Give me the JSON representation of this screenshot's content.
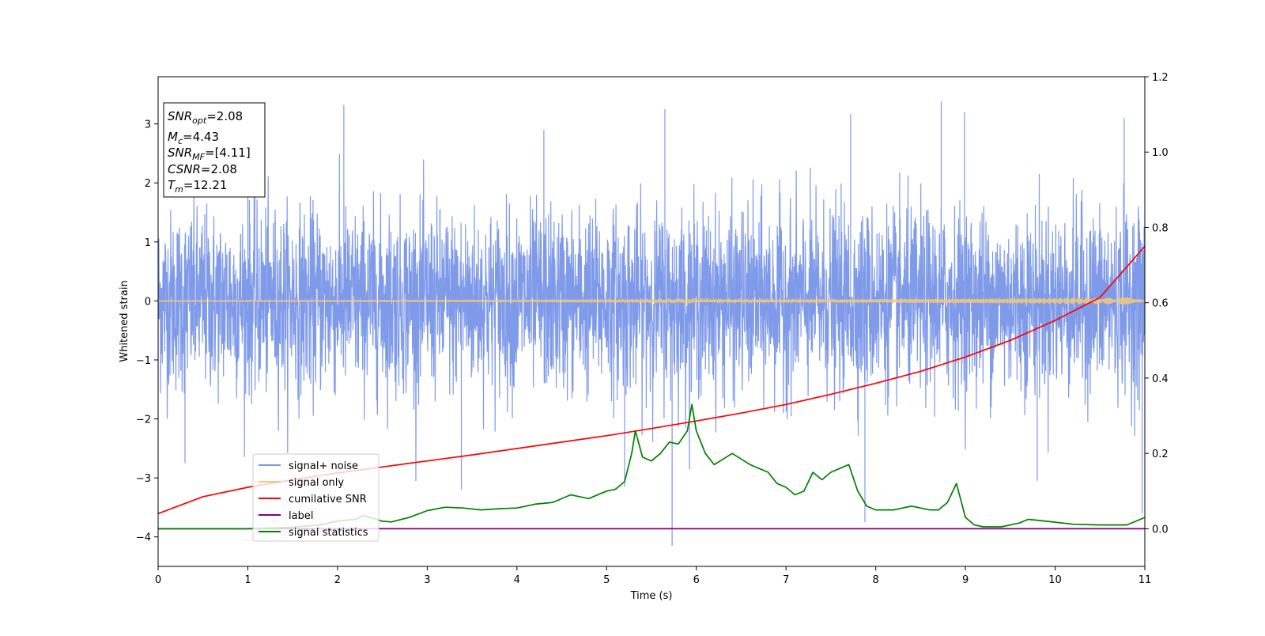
{
  "chart_data": {
    "type": "line",
    "title": "",
    "xlabel": "Time (s)",
    "ylabel": "Whitened strain",
    "y2label": "",
    "xlim": [
      0,
      11
    ],
    "ylim": [
      -4.5,
      3.8
    ],
    "y2lim": [
      -0.1,
      1.2
    ],
    "xticks": [
      "0",
      "1",
      "2",
      "3",
      "4",
      "5",
      "6",
      "7",
      "8",
      "9",
      "10",
      "11"
    ],
    "yticks": [
      "−4",
      "−3",
      "−2",
      "−1",
      "0",
      "1",
      "2",
      "3"
    ],
    "y2ticks": [
      "0.0",
      "0.2",
      "0.4",
      "0.6",
      "0.8",
      "1.0",
      "1.2"
    ],
    "grid": false,
    "legend_position": "lower-left",
    "info_box": {
      "snr_opt": {
        "main": "SNR",
        "sub": "opt",
        "value": "=2.08"
      },
      "mc": {
        "main": "M",
        "sub": "c",
        "value": "=4.43"
      },
      "snr_mf": {
        "main": "SNR",
        "sub": "MF",
        "value": "=[4.11]"
      },
      "csnr": {
        "main": "CSNR",
        "value": "=2.08"
      },
      "tm": {
        "main": "T",
        "sub": "m",
        "value": "=12.21"
      }
    },
    "series": [
      {
        "name": "signal+ noise",
        "axis": "left",
        "color": "#7895e8",
        "style": "noise",
        "center": 0.0,
        "envelope_typical": [
          -1.6,
          1.6
        ],
        "envelope_extremes": [
          -4.15,
          3.38
        ],
        "spikes": [
          {
            "x": 2.07,
            "y": 3.32
          },
          {
            "x": 5.65,
            "y": 3.25
          },
          {
            "x": 7.72,
            "y": 3.17
          },
          {
            "x": 8.73,
            "y": 3.38
          },
          {
            "x": 8.99,
            "y": 3.2
          },
          {
            "x": 10.77,
            "y": 3.1
          },
          {
            "x": 5.73,
            "y": -4.15
          },
          {
            "x": 7.88,
            "y": -3.75
          },
          {
            "x": 3.38,
            "y": -3.2
          },
          {
            "x": 9.8,
            "y": -3.05
          },
          {
            "x": 5.2,
            "y": -3.15
          },
          {
            "x": 0.3,
            "y": -2.75
          },
          {
            "x": 4.3,
            "y": 2.9
          },
          {
            "x": 1.0,
            "y": 2.7
          },
          {
            "x": 10.97,
            "y": -3.6
          }
        ]
      },
      {
        "name": "signal only",
        "axis": "left",
        "color": "#f5c97a",
        "style": "chirp",
        "amplitude_start": 0.008,
        "amplitude_end": 0.06
      },
      {
        "name": "cumilative SNR",
        "axis": "right",
        "color": "#ff0000",
        "x": [
          0,
          0.5,
          1,
          1.5,
          2,
          2.5,
          3,
          3.5,
          4,
          4.5,
          5,
          5.5,
          6,
          6.5,
          7,
          7.5,
          8,
          8.5,
          9,
          9.5,
          10,
          10.5,
          11
        ],
        "values": [
          0.04,
          0.085,
          0.11,
          0.13,
          0.148,
          0.164,
          0.18,
          0.196,
          0.213,
          0.23,
          0.247,
          0.266,
          0.286,
          0.307,
          0.33,
          0.357,
          0.386,
          0.418,
          0.456,
          0.5,
          0.553,
          0.614,
          0.75
        ]
      },
      {
        "name": "label",
        "axis": "right",
        "color": "#800080",
        "x": [
          0,
          11
        ],
        "values": [
          0.0,
          0.0
        ]
      },
      {
        "name": "signal statistics",
        "axis": "right",
        "color": "#008000",
        "x": [
          0,
          0.5,
          1,
          1.5,
          1.8,
          2.0,
          2.2,
          2.3,
          2.5,
          2.6,
          2.8,
          3.0,
          3.2,
          3.4,
          3.6,
          3.8,
          4.0,
          4.2,
          4.4,
          4.6,
          4.7,
          4.8,
          5.0,
          5.1,
          5.2,
          5.28,
          5.32,
          5.4,
          5.5,
          5.6,
          5.7,
          5.8,
          5.9,
          5.95,
          6.0,
          6.1,
          6.2,
          6.3,
          6.4,
          6.5,
          6.6,
          6.7,
          6.8,
          6.9,
          7.0,
          7.1,
          7.2,
          7.3,
          7.4,
          7.5,
          7.6,
          7.7,
          7.8,
          7.9,
          8.0,
          8.2,
          8.4,
          8.6,
          8.7,
          8.8,
          8.9,
          9.0,
          9.1,
          9.2,
          9.4,
          9.6,
          9.7,
          9.9,
          10.2,
          10.5,
          10.8,
          11.0
        ],
        "values": [
          0.0,
          0.0,
          0.0,
          0.004,
          0.01,
          0.02,
          0.025,
          0.035,
          0.02,
          0.018,
          0.03,
          0.048,
          0.057,
          0.055,
          0.05,
          0.053,
          0.055,
          0.065,
          0.07,
          0.09,
          0.085,
          0.08,
          0.1,
          0.105,
          0.125,
          0.2,
          0.26,
          0.19,
          0.18,
          0.2,
          0.23,
          0.225,
          0.26,
          0.33,
          0.26,
          0.2,
          0.17,
          0.185,
          0.2,
          0.185,
          0.17,
          0.16,
          0.15,
          0.12,
          0.11,
          0.09,
          0.1,
          0.15,
          0.13,
          0.15,
          0.16,
          0.17,
          0.1,
          0.06,
          0.05,
          0.05,
          0.06,
          0.05,
          0.05,
          0.07,
          0.12,
          0.03,
          0.01,
          0.005,
          0.005,
          0.015,
          0.025,
          0.02,
          0.012,
          0.01,
          0.01,
          0.03
        ]
      }
    ]
  }
}
